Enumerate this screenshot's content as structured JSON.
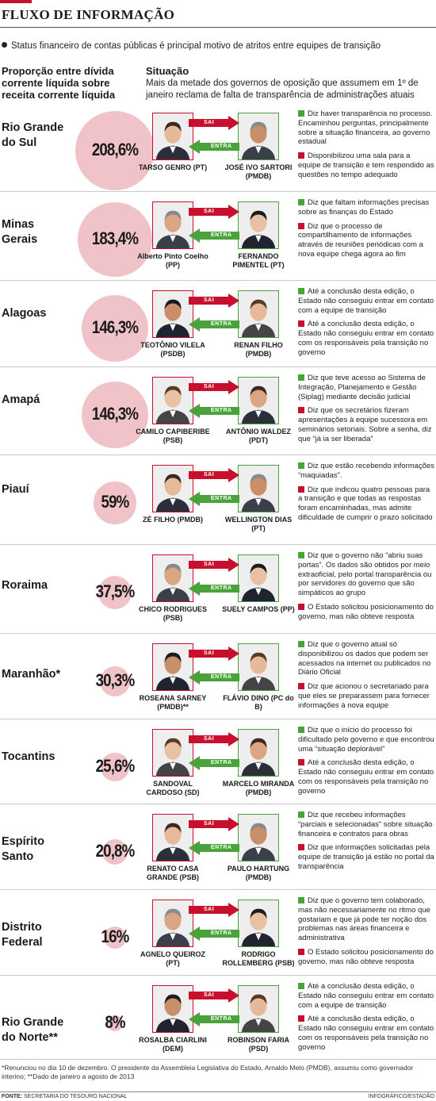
{
  "header": {
    "title": "FLUXO DE INFORMAÇÃO",
    "subtitle": "Status financeiro de contas públicas é principal motivo de atritos entre equipes de transição"
  },
  "columns": {
    "left_heading": "Proporção entre dívida corrente líquida sobre receita corrente líquida",
    "right_heading": "Situação",
    "right_description": "Mais da metade dos governos de oposição que assumem em 1º de janeiro reclama de falta de transparência de administrações atuais"
  },
  "arrow_labels": {
    "out": "SAI",
    "in": "ENTRA"
  },
  "colors": {
    "accent_red": "#c8102e",
    "accent_green": "#4aa23a",
    "circle_pink": "#f0c3c9"
  },
  "rows": [
    {
      "state": "Rio Grande do Sul",
      "percent": "208,6%",
      "value": 208.6,
      "outgoing": "TARSO GENRO (PT)",
      "incoming": "JOSÉ IVO SARTORI (PMDB)",
      "notes": [
        {
          "color": "green",
          "text": "Diz haver transparência no processo. Encaminhou perguntas, principalmente sobre a situação financeira, ao governo estadual"
        },
        {
          "color": "red",
          "text": "Disponibilizou uma sala para a equipe de transição e tem respondido as questões no tempo adequado"
        }
      ]
    },
    {
      "state": "Minas Gerais",
      "percent": "183,4%",
      "value": 183.4,
      "outgoing": "Alberto Pinto Coelho (PP)",
      "incoming": "FERNANDO PIMENTEL (PT)",
      "notes": [
        {
          "color": "green",
          "text": "Diz que faltam informações precisas sobre as finanças do Estado"
        },
        {
          "color": "red",
          "text": "Diz que o processo de compartilhamento de informações através de reuniões periódicas com a nova equipe chega agora ao fim"
        }
      ]
    },
    {
      "state": "Alagoas",
      "percent": "146,3%",
      "value": 146.3,
      "outgoing": "TEOTÔNIO VILELA (PSDB)",
      "incoming": "RENAN FILHO (PMDB)",
      "notes": [
        {
          "color": "green",
          "text": "Até a conclusão desta edição, o Estado não conseguiu entrar em contato com a equipe de transição"
        },
        {
          "color": "red",
          "text": "Até a conclusão desta edição, o Estado não conseguiu entrar em contato com os responsáveis pela transição no governo"
        }
      ]
    },
    {
      "state": "Amapá",
      "percent": "146,3%",
      "value": 146.3,
      "outgoing": "CAMILO CAPIBERIBE (PSB)",
      "incoming": "ANTÔNIO WALDEZ (PDT)",
      "notes": [
        {
          "color": "green",
          "text": "Diz que teve acesso ao Sistema de Integração, Planejamento e Gestão (Siplag) mediante decisão judicial"
        },
        {
          "color": "red",
          "text": "Diz que os secretários fizeram apresentações à equipe sucessora em seminários setoriais. Sobre a senha, diz que “já ia ser liberada”"
        }
      ]
    },
    {
      "state": "Piauí",
      "percent": "59%",
      "value": 59,
      "outgoing": "ZÉ FILHO (PMDB)",
      "incoming": "WELLINGTON DIAS (PT)",
      "notes": [
        {
          "color": "green",
          "text": "Diz que estão recebendo informações “maquiadas”."
        },
        {
          "color": "red",
          "text": "Diz que indicou quatro pessoas para a transição e que todas as respostas foram encaminhadas, mas admite dificuldade de cumprir o prazo solicitado"
        }
      ]
    },
    {
      "state": "Roraima",
      "percent": "37,5%",
      "value": 37.5,
      "outgoing": "CHICO RODRIGUES (PSB)",
      "incoming": "SUELY CAMPOS (PP)",
      "notes": [
        {
          "color": "green",
          "text": "Diz que o governo não “abriu suas portas”. Os dados são obtidos por meio extraoficial, pelo portal transparência ou por servidores do governo que são simpáticos ao grupo"
        },
        {
          "color": "red",
          "text": "O Estado solicitou posicionamento do governo, mas não obteve resposta"
        }
      ]
    },
    {
      "state": "Maranhão*",
      "percent": "30,3%",
      "value": 30.3,
      "outgoing": "ROSEANA SARNEY (PMDB)**",
      "incoming": "FLÁVIO DINO (PC do B)",
      "notes": [
        {
          "color": "green",
          "text": "Diz que o governo atual só disponibilizou os dados que podem ser acessados na internet ou publicados no Diário Oficial"
        },
        {
          "color": "red",
          "text": "Diz que acionou o secretariado para que eles se preparassem para fornecer informações à nova equipe"
        }
      ]
    },
    {
      "state": "Tocantins",
      "percent": "25,6%",
      "value": 25.6,
      "outgoing": "SANDOVAL CARDOSO (SD)",
      "incoming": "MARCELO MIRANDA (PMDB)",
      "notes": [
        {
          "color": "green",
          "text": "Diz que o início do processo foi dificultado pelo governo e que encontrou uma “situação deplorável”"
        },
        {
          "color": "red",
          "text": "Até a conclusão desta edição, o Estado não conseguiu entrar em contato com os responsáveis pela transição no governo"
        }
      ]
    },
    {
      "state": "Espírito Santo",
      "percent": "20,8%",
      "value": 20.8,
      "outgoing": "RENATO CASA GRANDE (PSB)",
      "incoming": "PAULO HARTUNG (PMDB)",
      "notes": [
        {
          "color": "green",
          "text": "Diz que recebeu informações “parciais e selecionadas” sobre situação financeira e contratos para obras"
        },
        {
          "color": "red",
          "text": "Diz que informações solicitadas pela equipe de transição já estão no portal da transparência"
        }
      ]
    },
    {
      "state": "Distrito Federal",
      "percent": "16%",
      "value": 16,
      "outgoing": "AGNELO QUEIROZ (PT)",
      "incoming": "RODRIGO ROLLEMBERG (PSB)",
      "notes": [
        {
          "color": "green",
          "text": "Diz que o governo tem colaborado, mas não necessariamente no ritmo que gostariam e que já pode ter noção dos problemas nas áreas financeira e administrativa"
        },
        {
          "color": "red",
          "text": "O Estado solicitou posicionamento do governo, mas não obteve resposta"
        }
      ]
    },
    {
      "state": "Rio Grande do Norte**",
      "percent": "8%",
      "value": 8,
      "outgoing": "ROSALBA CIARLINI (DEM)",
      "incoming": "ROBINSON FARIA (PSD)",
      "notes": [
        {
          "color": "green",
          "text": "Até a conclusão desta edição, o Estado não conseguiu entrar em contato com a equipe de transição"
        },
        {
          "color": "red",
          "text": "Até a conclusão desta edição, o Estado não conseguiu entrar em contato com os responsáveis pela transição no governo"
        }
      ]
    }
  ],
  "footnote": "*Renunciou no dia 10 de dezembro. O presidente da Assembleia Legislativa do Estado, Arnaldo Melo (PMDB), assumiu como governador interino; **Dado de janeiro a agosto de 2013",
  "source_label": "FONTE:",
  "source": "SECRETARIA DO TESOURO NACIONAL",
  "credit": "INFOGRÁFICO/ESTADÃO"
}
